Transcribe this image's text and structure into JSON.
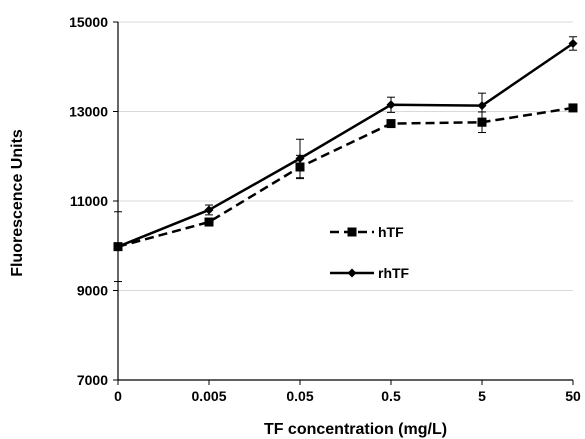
{
  "chart_data": {
    "type": "line",
    "title": "",
    "xlabel": "TF concentration (mg/L)",
    "ylabel": "Fluorescence Units",
    "categories": [
      "0",
      "0.005",
      "0.05",
      "0.5",
      "5",
      "50"
    ],
    "ylim": [
      7000,
      15000
    ],
    "yticks": [
      "7000",
      "9000",
      "11000",
      "13000",
      "15000"
    ],
    "grid": true,
    "legend_position": "center-right",
    "series": [
      {
        "name": "hTF",
        "values": [
          9980,
          10530,
          11760,
          12730,
          12760,
          13080
        ],
        "errors": [
          0,
          60,
          260,
          60,
          230,
          0
        ],
        "line_style": "dashed",
        "marker": "square",
        "color": "#000000"
      },
      {
        "name": "rhTF",
        "values": [
          9980,
          10800,
          11950,
          13150,
          13130,
          14520
        ],
        "errors": [
          780,
          110,
          430,
          170,
          280,
          150
        ],
        "line_style": "solid",
        "marker": "diamond",
        "color": "#000000"
      }
    ]
  }
}
